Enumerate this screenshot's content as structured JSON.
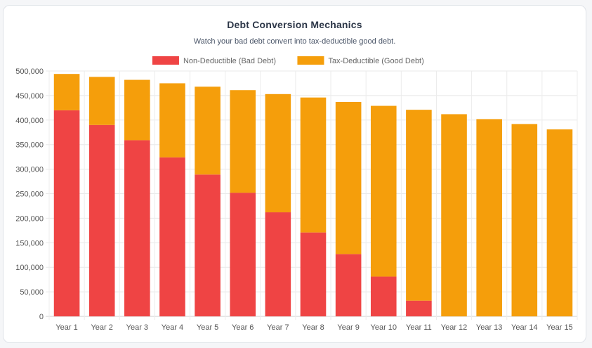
{
  "chart_data": {
    "type": "bar",
    "stacked": true,
    "title": "Debt Conversion Mechanics",
    "subtitle": "Watch your bad debt convert into tax-deductible good debt.",
    "categories": [
      "Year 1",
      "Year 2",
      "Year 3",
      "Year 4",
      "Year 5",
      "Year 6",
      "Year 7",
      "Year 8",
      "Year 9",
      "Year 10",
      "Year 11",
      "Year 12",
      "Year 13",
      "Year 14",
      "Year 15"
    ],
    "series": [
      {
        "name": "Non-Deductible (Bad Debt)",
        "color": "#ef4444",
        "values": [
          420000,
          390000,
          359000,
          324000,
          289000,
          252000,
          212000,
          171000,
          127000,
          81000,
          32000,
          0,
          0,
          0,
          0
        ]
      },
      {
        "name": "Tax-Deductible (Good Debt)",
        "color": "#f59e0b",
        "values": [
          74000,
          98000,
          123000,
          151000,
          179000,
          209000,
          241000,
          275000,
          310000,
          348000,
          389000,
          412000,
          402000,
          392000,
          381000
        ]
      }
    ],
    "ylim": [
      0,
      500000
    ],
    "yticks": [
      "0",
      "50,000",
      "100,000",
      "150,000",
      "200,000",
      "250,000",
      "300,000",
      "350,000",
      "400,000",
      "450,000",
      "500,000"
    ],
    "grid": true,
    "legend_position": "top"
  }
}
